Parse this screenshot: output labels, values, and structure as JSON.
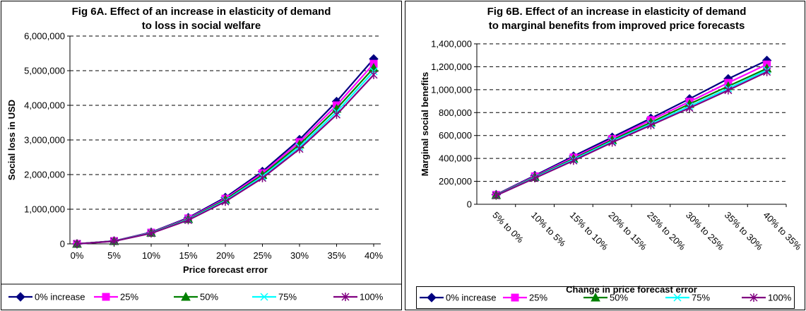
{
  "colors": {
    "s0": "#000080",
    "s1": "#ff00ff",
    "s2": "#008000",
    "s3": "#00ffff",
    "s4": "#800080",
    "frame": "#000000",
    "grid": "#000000"
  },
  "chart_data": [
    {
      "type": "line",
      "title": "Fig 6A. Effect of an increase in elasticity of demand",
      "subtitle": "to loss in social welfare",
      "xlabel": "Price forecast error",
      "ylabel": "Social loss in USD",
      "ylim": [
        0,
        6000000
      ],
      "yticks": [
        "0",
        "1,000,000",
        "2,000,000",
        "3,000,000",
        "4,000,000",
        "5,000,000",
        "6,000,000"
      ],
      "grid": true,
      "legend_position": "bottom",
      "categories": [
        "0%",
        "5%",
        "10%",
        "15%",
        "20%",
        "25%",
        "30%",
        "35%",
        "40%"
      ],
      "series": [
        {
          "name": "0% increase",
          "marker": "diamond",
          "values": [
            0,
            84000,
            335000,
            755000,
            1340000,
            2090000,
            3010000,
            4110000,
            5340000
          ]
        },
        {
          "name": "25%",
          "marker": "square",
          "values": [
            0,
            82000,
            326000,
            735000,
            1305000,
            2040000,
            2940000,
            4000000,
            5200000
          ]
        },
        {
          "name": "50%",
          "marker": "triangle",
          "values": [
            0,
            80000,
            318000,
            715000,
            1275000,
            1990000,
            2870000,
            3900000,
            5080000
          ]
        },
        {
          "name": "75%",
          "marker": "x",
          "values": [
            0,
            78000,
            311000,
            700000,
            1245000,
            1945000,
            2800000,
            3810000,
            4980000
          ]
        },
        {
          "name": "100%",
          "marker": "star",
          "values": [
            0,
            76000,
            304000,
            685000,
            1220000,
            1900000,
            2740000,
            3730000,
            4880000
          ]
        }
      ]
    },
    {
      "type": "line",
      "title": "Fig 6B. Effect of an increase in elasticity of demand",
      "subtitle": "to marginal benefits from improved price forecasts",
      "xlabel": "Change in price forecast error",
      "ylabel": "Marginal social benefits",
      "ylim": [
        0,
        1400000
      ],
      "yticks": [
        "0",
        "200,000",
        "400,000",
        "600,000",
        "800,000",
        "1,000,000",
        "1,200,000",
        "1,400,000"
      ],
      "grid": true,
      "legend_position": "bottom",
      "categories": [
        "5% to 0%",
        "10% to 5%",
        "15% to 10%",
        "20% to 15%",
        "25% to 20%",
        "30% to 25%",
        "35% to 30%",
        "40% to 35%"
      ],
      "series": [
        {
          "name": "0% increase",
          "marker": "diamond",
          "values": [
            84000,
            251000,
            420000,
            585000,
            750000,
            920000,
            1095000,
            1255000
          ]
        },
        {
          "name": "25%",
          "marker": "square",
          "values": [
            82000,
            244000,
            409000,
            570000,
            735000,
            895000,
            1060000,
            1220000
          ]
        },
        {
          "name": "50%",
          "marker": "triangle",
          "values": [
            80000,
            238000,
            397000,
            560000,
            715000,
            875000,
            1030000,
            1185000
          ]
        },
        {
          "name": "75%",
          "marker": "x",
          "values": [
            78000,
            233000,
            389000,
            550000,
            700000,
            855000,
            1010000,
            1170000
          ]
        },
        {
          "name": "100%",
          "marker": "star",
          "values": [
            76000,
            228000,
            381000,
            540000,
            690000,
            840000,
            995000,
            1155000
          ]
        }
      ]
    }
  ]
}
